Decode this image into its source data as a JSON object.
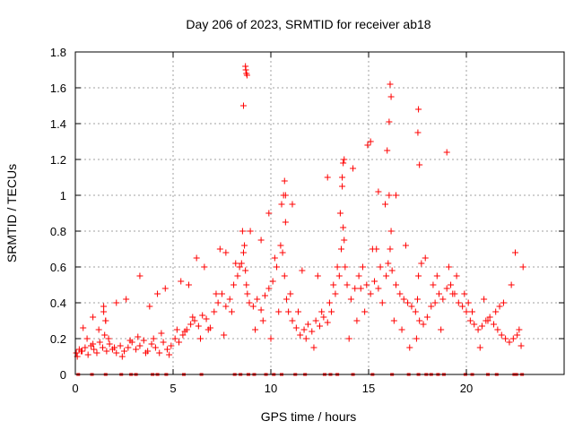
{
  "chart_data": {
    "type": "scatter",
    "title": "Day 206 of 2023, SRMTID for receiver ab18",
    "xlabel": "GPS time / hours",
    "ylabel": "SRMTID / TECUs",
    "xlim": [
      0,
      25
    ],
    "ylim": [
      0,
      1.8
    ],
    "xticks": [
      0,
      5,
      10,
      15,
      20
    ],
    "xtick_labels": [
      "0",
      "5",
      "10",
      "15",
      "20"
    ],
    "yticks": [
      0,
      0.2,
      0.4,
      0.6,
      0.8,
      1,
      1.2,
      1.4,
      1.6,
      1.8
    ],
    "ytick_labels": [
      "0",
      "0.2",
      "0.4",
      "0.6",
      "0.8",
      "1",
      "1.2",
      "1.4",
      "1.6",
      "1.8"
    ],
    "grid": true,
    "marker": "+",
    "color": "#ff0000",
    "series": [
      {
        "name": "SRMTID",
        "x": [
          0.05,
          0.2,
          0.35,
          0.5,
          0.65,
          0.8,
          0.95,
          1.1,
          1.25,
          1.4,
          1.5,
          1.6,
          1.75,
          1.9,
          2.1,
          2.3,
          2.5,
          2.7,
          2.9,
          3.1,
          3.3,
          3.5,
          3.7,
          3.9,
          4.1,
          4.3,
          4.5,
          4.7,
          4.9,
          5.1,
          5.3,
          5.5,
          5.7,
          5.9,
          6.1,
          6.3,
          6.5,
          6.7,
          6.9,
          7.1,
          7.3,
          7.5,
          7.7,
          7.9,
          8.1,
          8.3,
          8.5,
          8.6,
          8.7,
          8.8,
          8.9,
          9.1,
          9.3,
          9.5,
          9.7,
          9.9,
          10.1,
          10.3,
          10.5,
          10.6,
          10.7,
          10.8,
          10.9,
          11.1,
          11.3,
          11.5,
          11.7,
          11.9,
          12.1,
          12.3,
          12.5,
          12.7,
          12.9,
          13.1,
          13.3,
          13.5,
          13.6,
          13.7,
          13.8,
          13.9,
          14.1,
          14.3,
          14.5,
          14.7,
          14.9,
          15.1,
          15.3,
          15.5,
          15.7,
          15.9,
          16.0,
          16.1,
          16.2,
          16.4,
          16.6,
          16.8,
          17.0,
          17.2,
          17.4,
          17.5,
          17.6,
          17.8,
          18.0,
          18.2,
          18.4,
          18.6,
          18.8,
          19.0,
          19.2,
          19.4,
          19.6,
          19.8,
          20.0,
          20.2,
          20.4,
          20.6,
          20.8,
          21.0,
          21.2,
          21.4,
          21.6,
          21.8,
          22.0,
          22.2,
          22.4,
          22.6,
          22.8,
          0.1,
          0.3,
          0.6,
          0.9,
          1.2,
          1.45,
          1.55,
          1.7,
          2.0,
          2.4,
          2.8,
          3.2,
          3.6,
          4.0,
          4.4,
          4.8,
          5.2,
          5.6,
          6.0,
          6.4,
          6.8,
          7.2,
          7.6,
          8.0,
          8.4,
          8.55,
          8.65,
          8.75,
          9.2,
          9.6,
          10.0,
          10.4,
          10.55,
          10.65,
          10.75,
          11.0,
          11.4,
          11.8,
          12.2,
          12.6,
          13.0,
          13.4,
          13.55,
          13.65,
          13.75,
          14.0,
          14.4,
          14.8,
          15.2,
          15.6,
          15.85,
          16.05,
          16.15,
          16.3,
          16.7,
          17.1,
          17.45,
          17.55,
          17.9,
          18.3,
          18.7,
          19.1,
          19.5,
          19.9,
          20.3,
          20.7,
          21.1,
          21.5,
          21.9,
          22.3,
          22.7,
          8.7,
          8.75,
          8.72,
          8.78,
          8.6,
          16.1,
          16.15,
          17.55,
          17.52,
          16.05,
          15.1,
          14.95,
          13.7,
          13.75,
          13.65,
          10.7,
          10.75,
          19.0,
          17.6,
          15.95,
          14.2,
          12.9,
          16.4,
          15.5,
          11.1,
          9.9,
          8.95,
          7.4,
          6.2,
          5.8,
          4.2,
          3.3,
          2.1,
          1.45,
          1.55,
          0.4,
          0.9,
          2.6,
          3.8,
          4.6,
          5.4,
          6.6,
          7.7,
          8.2,
          9.5,
          10.2,
          11.6,
          12.4,
          13.2,
          14.6,
          15.4,
          16.9,
          17.7,
          18.5,
          19.3,
          20.1,
          20.9,
          21.7,
          22.5,
          22.9
        ],
        "y": [
          0.12,
          0.14,
          0.13,
          0.15,
          0.11,
          0.16,
          0.14,
          0.12,
          0.18,
          0.15,
          0.22,
          0.13,
          0.17,
          0.14,
          0.12,
          0.16,
          0.13,
          0.15,
          0.18,
          0.14,
          0.16,
          0.19,
          0.13,
          0.17,
          0.15,
          0.12,
          0.18,
          0.14,
          0.16,
          0.2,
          0.18,
          0.22,
          0.25,
          0.28,
          0.3,
          0.27,
          0.33,
          0.31,
          0.26,
          0.35,
          0.4,
          0.45,
          0.38,
          0.42,
          0.5,
          0.55,
          0.62,
          0.68,
          0.58,
          0.45,
          0.4,
          0.38,
          0.42,
          0.36,
          0.44,
          0.48,
          0.52,
          0.6,
          0.72,
          0.68,
          0.55,
          0.42,
          0.35,
          0.3,
          0.26,
          0.22,
          0.25,
          0.28,
          0.24,
          0.3,
          0.27,
          0.32,
          0.29,
          0.35,
          0.45,
          0.55,
          0.7,
          0.82,
          0.6,
          0.5,
          0.42,
          0.48,
          0.55,
          0.6,
          0.5,
          0.45,
          0.52,
          0.48,
          0.4,
          0.55,
          0.62,
          0.7,
          0.58,
          0.5,
          0.45,
          0.42,
          0.4,
          0.38,
          0.35,
          0.42,
          0.3,
          0.28,
          0.32,
          0.38,
          0.4,
          0.45,
          0.42,
          0.48,
          0.5,
          0.45,
          0.4,
          0.38,
          0.35,
          0.3,
          0.28,
          0.25,
          0.27,
          0.3,
          0.32,
          0.28,
          0.25,
          0.22,
          0.2,
          0.18,
          0.2,
          0.22,
          0.16,
          0.1,
          0.13,
          0.2,
          0.17,
          0.25,
          0.35,
          0.3,
          0.2,
          0.15,
          0.1,
          0.19,
          0.21,
          0.12,
          0.2,
          0.23,
          0.11,
          0.25,
          0.24,
          0.32,
          0.2,
          0.25,
          0.45,
          0.22,
          0.35,
          0.6,
          0.8,
          0.72,
          0.5,
          0.25,
          0.3,
          0.2,
          0.35,
          0.95,
          1.0,
          0.85,
          0.45,
          0.35,
          0.2,
          0.15,
          0.35,
          0.4,
          0.6,
          0.9,
          1.05,
          0.75,
          0.2,
          0.3,
          0.35,
          0.7,
          0.6,
          0.95,
          1.0,
          0.8,
          0.3,
          0.25,
          0.15,
          0.2,
          0.55,
          0.65,
          0.5,
          0.25,
          0.6,
          0.55,
          0.45,
          0.35,
          0.15,
          0.3,
          0.35,
          0.4,
          0.5,
          0.25,
          1.72,
          1.68,
          1.7,
          1.67,
          1.5,
          1.62,
          1.55,
          1.48,
          1.35,
          1.41,
          1.3,
          1.28,
          1.18,
          1.2,
          1.1,
          1.08,
          1.0,
          1.24,
          1.17,
          1.25,
          1.15,
          1.1,
          1.0,
          1.02,
          0.95,
          0.9,
          0.8,
          0.7,
          0.65,
          0.5,
          0.45,
          0.55,
          0.4,
          0.38,
          0.3,
          0.26,
          0.32,
          0.42,
          0.38,
          0.48,
          0.52,
          0.6,
          0.68,
          0.62,
          0.75,
          0.65,
          0.58,
          0.55,
          0.5,
          0.48,
          0.7,
          0.72,
          0.62,
          0.55,
          0.45,
          0.4,
          0.42,
          0.38,
          0.68,
          0.6
        ]
      }
    ],
    "baseline_marks_x": [
      0.15,
      0.85,
      1.55,
      2.35,
      2.85,
      3.1,
      3.95,
      4.2,
      4.65,
      5.55,
      6.45,
      8.15,
      8.45,
      8.85,
      9.15,
      9.75,
      10.15,
      10.55,
      11.25,
      11.75,
      12.75,
      13.05,
      13.4,
      14.2,
      15.2,
      16.2,
      17.05,
      17.55,
      17.95,
      18.2,
      18.55,
      18.85,
      19.95,
      20.3,
      21.1,
      21.55,
      22.45,
      22.55,
      22.85
    ]
  }
}
